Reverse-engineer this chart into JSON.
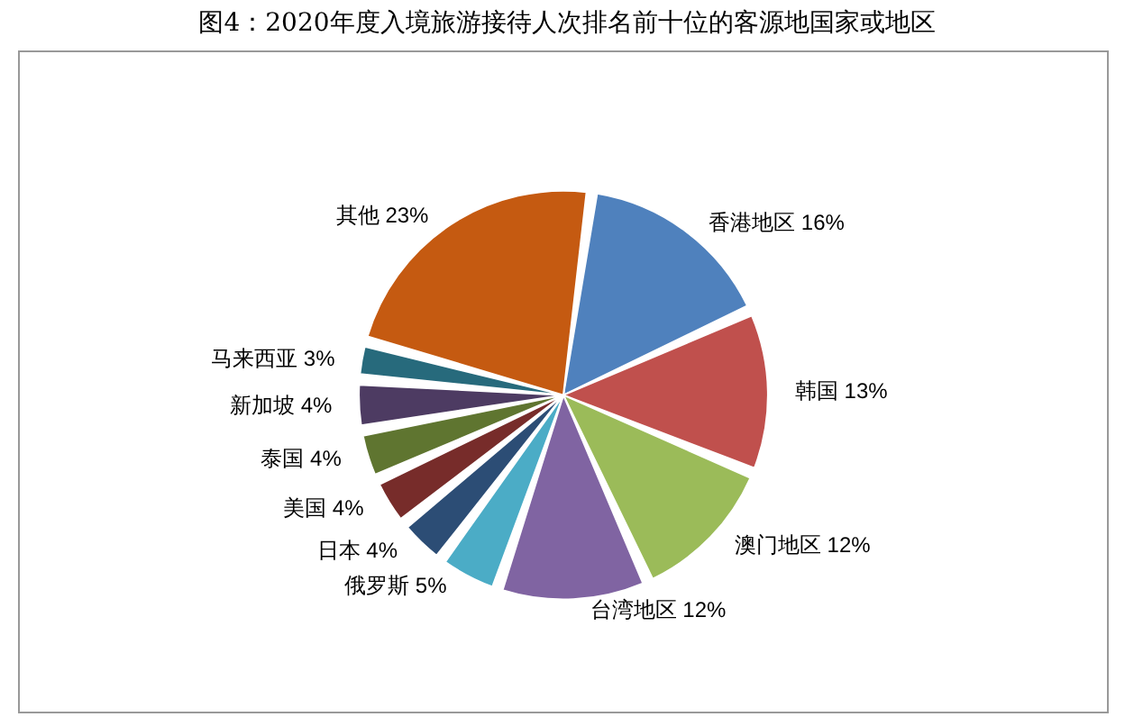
{
  "chart_data": {
    "type": "pie",
    "title": "图4：2020年度入境旅游接待人次排名前十位的客源地国家或地区",
    "categories": [
      "香港地区",
      "韩国",
      "澳门地区",
      "台湾地区",
      "俄罗斯",
      "日本",
      "美国",
      "泰国",
      "新加坡",
      "马来西亚",
      "其他"
    ],
    "values": [
      16,
      13,
      12,
      12,
      5,
      4,
      4,
      4,
      4,
      3,
      23
    ],
    "value_labels": [
      "16%",
      "13%",
      "12%",
      "12%",
      "5%",
      "4%",
      "4%",
      "4%",
      "4%",
      "3%",
      "23%"
    ],
    "colors": [
      "#4f81bd",
      "#c0504d",
      "#9bbb59",
      "#8064a2",
      "#4bacc6",
      "#2c4d75",
      "#772c2a",
      "#5f7530",
      "#4d3b62",
      "#276a7c",
      "#c55a11"
    ],
    "legend": false
  }
}
